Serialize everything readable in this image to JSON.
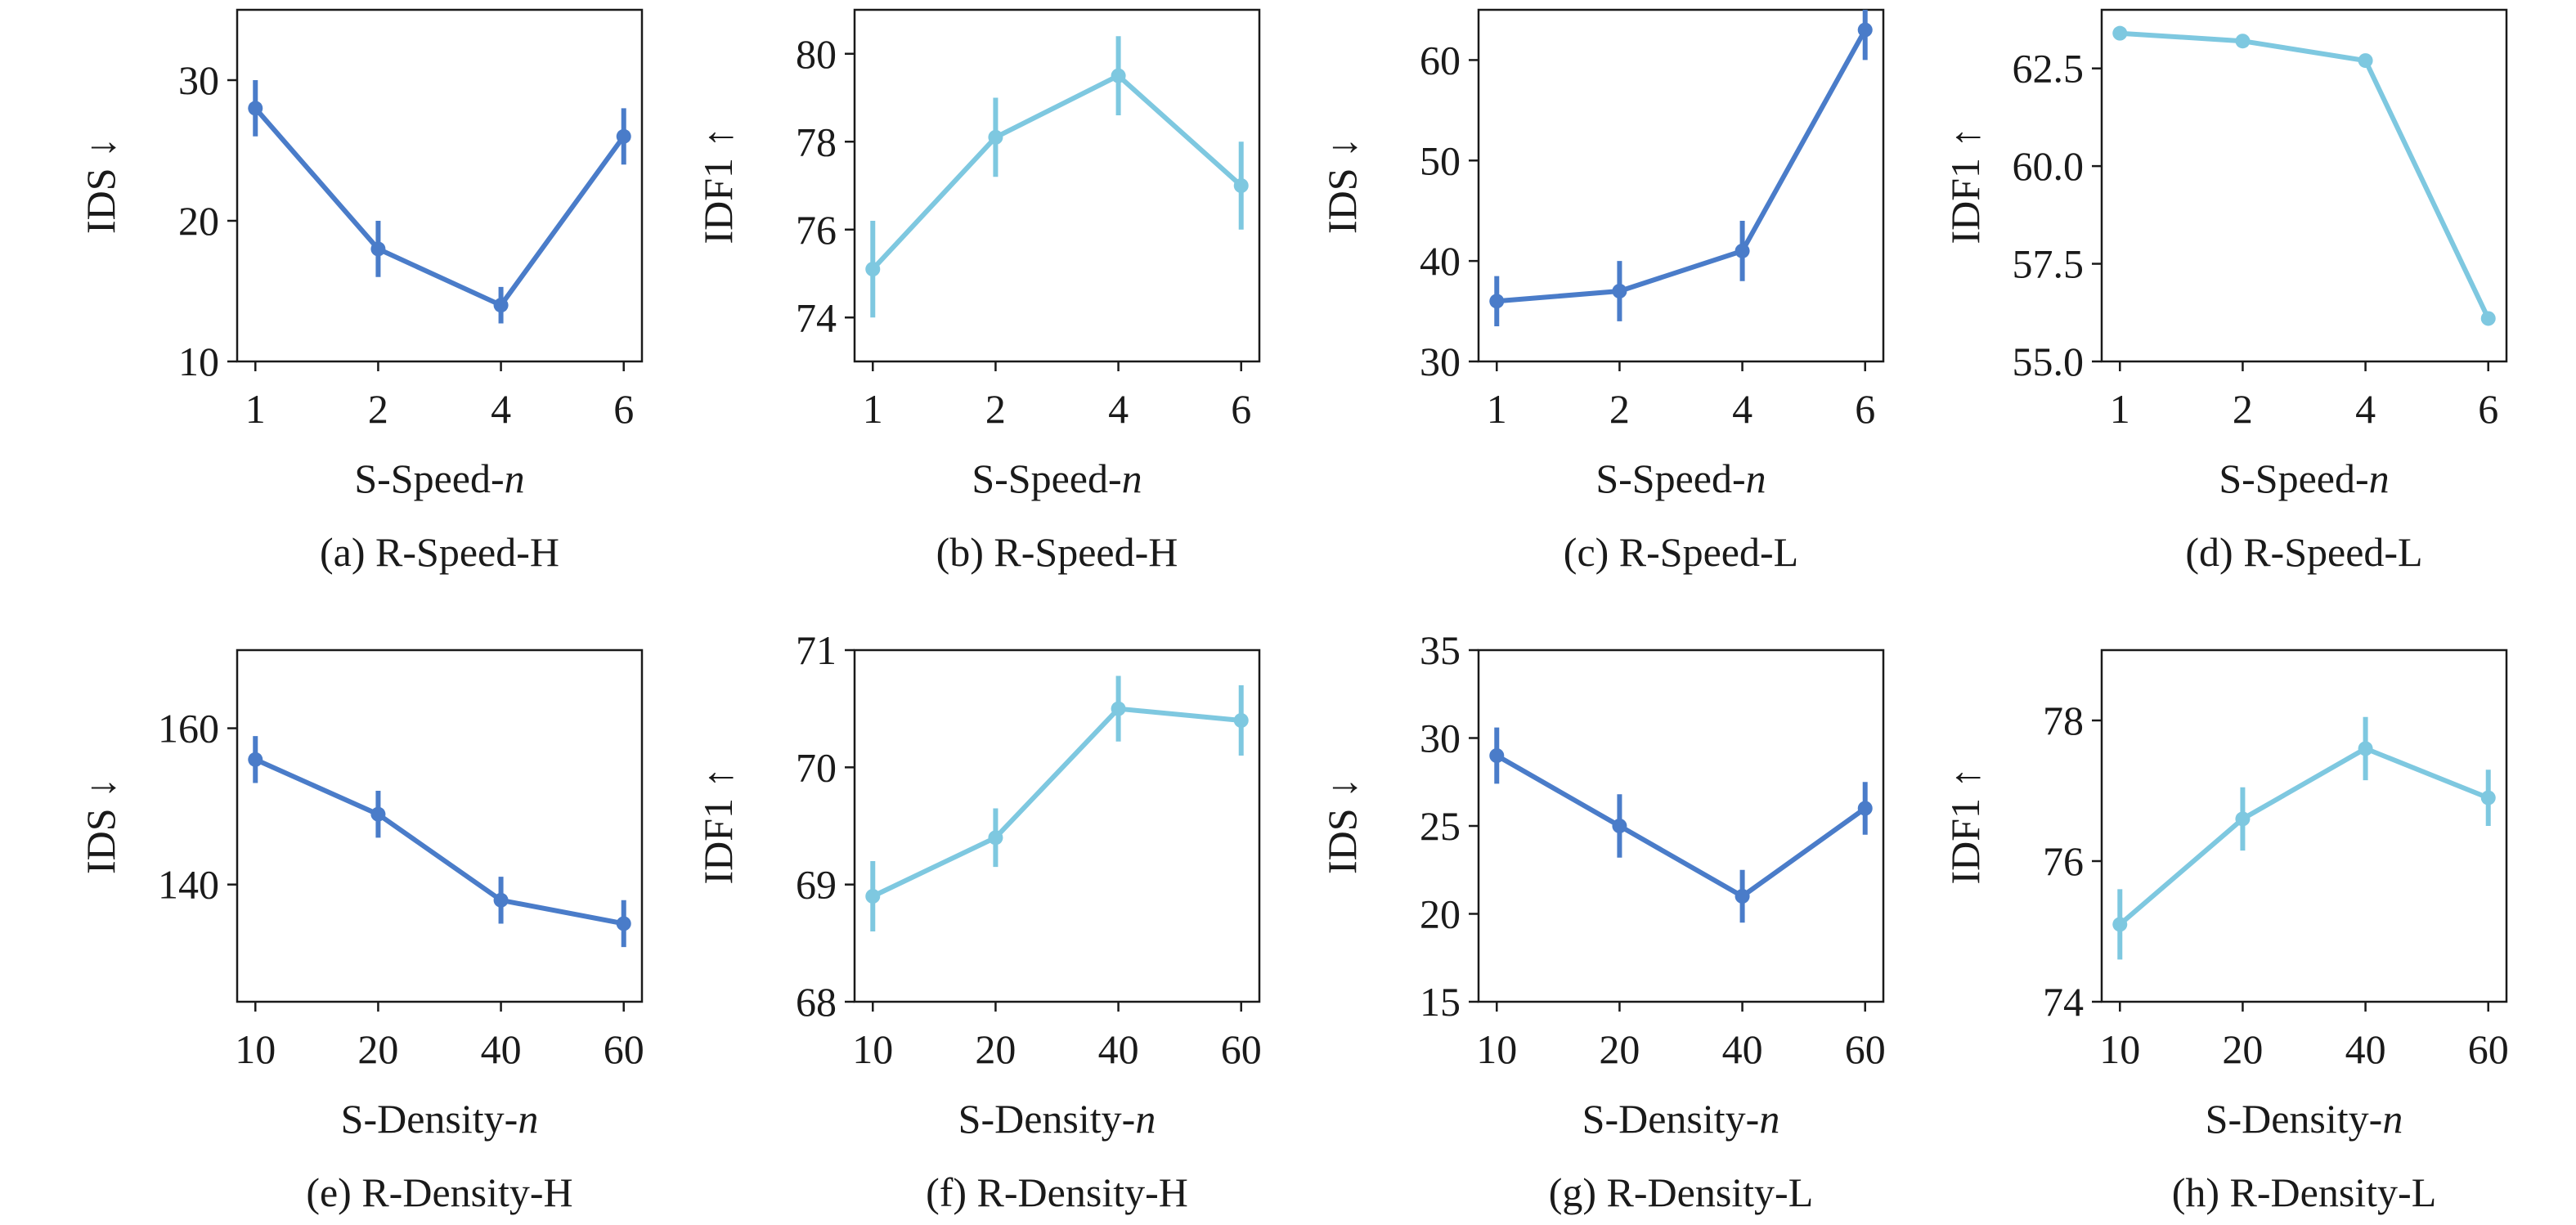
{
  "chart_data": [
    {
      "type": "line",
      "caption": "(a) R-Speed-H",
      "xlabel": "S-Speed-",
      "xlabel_var": "n",
      "ylabel": "IDS ↓",
      "categories": [
        "1",
        "2",
        "4",
        "6"
      ],
      "values": [
        28,
        18,
        14,
        26
      ],
      "errors": [
        2,
        2,
        1.3,
        2
      ],
      "ylim": [
        10,
        35
      ],
      "yticks": [
        "10",
        "20",
        "30"
      ],
      "color": "#4a7cc9",
      "grid": false,
      "legend": "none"
    },
    {
      "type": "line",
      "caption": "(b) R-Speed-H",
      "xlabel": "S-Speed-",
      "xlabel_var": "n",
      "ylabel": "IDF1 ↑",
      "categories": [
        "1",
        "2",
        "4",
        "6"
      ],
      "values": [
        75.1,
        78.1,
        79.5,
        77.0
      ],
      "errors": [
        1.1,
        0.9,
        0.9,
        1.0
      ],
      "ylim": [
        73,
        81
      ],
      "yticks": [
        "74",
        "76",
        "78",
        "80"
      ],
      "color": "#7ec8e0",
      "grid": false,
      "legend": "none"
    },
    {
      "type": "line",
      "caption": "(c) R-Speed-L",
      "xlabel": "S-Speed-",
      "xlabel_var": "n",
      "ylabel": "IDS ↓",
      "categories": [
        "1",
        "2",
        "4",
        "6"
      ],
      "values": [
        36,
        37,
        41,
        63
      ],
      "errors": [
        2.5,
        3,
        3,
        3
      ],
      "ylim": [
        30,
        65
      ],
      "yticks": [
        "30",
        "40",
        "50",
        "60"
      ],
      "color": "#4a7cc9",
      "grid": false,
      "legend": "none"
    },
    {
      "type": "line",
      "caption": "(d) R-Speed-L",
      "xlabel": "S-Speed-",
      "xlabel_var": "n",
      "ylabel": "IDF1 ↑",
      "categories": [
        "1",
        "2",
        "4",
        "6"
      ],
      "values": [
        63.4,
        63.2,
        62.7,
        56.1
      ],
      "errors": [
        0,
        0,
        0,
        0
      ],
      "ylim": [
        55,
        64
      ],
      "yticks": [
        "55.0",
        "57.5",
        "60.0",
        "62.5"
      ],
      "color": "#7ec8e0",
      "grid": false,
      "legend": "none"
    },
    {
      "type": "line",
      "caption": "(e) R-Density-H",
      "xlabel": "S-Density-",
      "xlabel_var": "n",
      "ylabel": "IDS ↓",
      "categories": [
        "10",
        "20",
        "40",
        "60"
      ],
      "values": [
        156,
        149,
        138,
        135
      ],
      "errors": [
        3,
        3,
        3,
        3
      ],
      "ylim": [
        125,
        170
      ],
      "yticks": [
        "140",
        "160"
      ],
      "color": "#4a7cc9",
      "grid": false,
      "legend": "none"
    },
    {
      "type": "line",
      "caption": "(f) R-Density-H",
      "xlabel": "S-Density-",
      "xlabel_var": "n",
      "ylabel": "IDF1 ↑",
      "categories": [
        "10",
        "20",
        "40",
        "60"
      ],
      "values": [
        68.9,
        69.4,
        70.5,
        70.4
      ],
      "errors": [
        0.3,
        0.25,
        0.28,
        0.3
      ],
      "ylim": [
        68,
        71
      ],
      "yticks": [
        "68",
        "69",
        "70",
        "71"
      ],
      "color": "#7ec8e0",
      "grid": false,
      "legend": "none"
    },
    {
      "type": "line",
      "caption": "(g) R-Density-L",
      "xlabel": "S-Density-",
      "xlabel_var": "n",
      "ylabel": "IDS ↓",
      "categories": [
        "10",
        "20",
        "40",
        "60"
      ],
      "values": [
        29,
        25,
        21,
        26
      ],
      "errors": [
        1.6,
        1.8,
        1.5,
        1.5
      ],
      "ylim": [
        15,
        35
      ],
      "yticks": [
        "15",
        "20",
        "25",
        "30",
        "35"
      ],
      "color": "#4a7cc9",
      "grid": false,
      "legend": "none"
    },
    {
      "type": "line",
      "caption": "(h) R-Density-L",
      "xlabel": "S-Density-",
      "xlabel_var": "n",
      "ylabel": "IDF1 ↑",
      "categories": [
        "10",
        "20",
        "40",
        "60"
      ],
      "values": [
        75.1,
        76.6,
        77.6,
        76.9
      ],
      "errors": [
        0.5,
        0.45,
        0.45,
        0.4
      ],
      "ylim": [
        74,
        79
      ],
      "yticks": [
        "74",
        "76",
        "78"
      ],
      "color": "#7ec8e0",
      "grid": false,
      "legend": "none"
    }
  ]
}
